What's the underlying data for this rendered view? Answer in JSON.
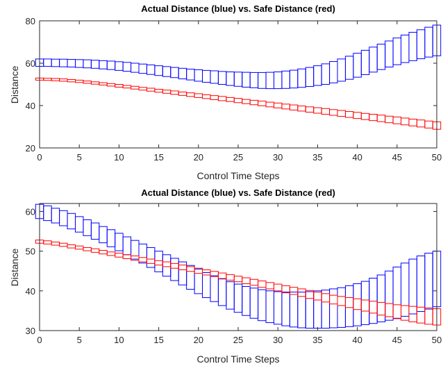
{
  "chart_data": [
    {
      "type": "box",
      "title": "Actual Distance (blue) vs. Safe Distance (red)",
      "xlabel": "Control Time Steps",
      "ylabel": "Distance",
      "xlim": [
        0,
        50
      ],
      "ylim": [
        20,
        80
      ],
      "xticks": [
        0,
        5,
        10,
        15,
        20,
        25,
        30,
        35,
        40,
        45,
        50
      ],
      "yticks": [
        20,
        40,
        60,
        80
      ],
      "grid": false,
      "colors": {
        "actual": "#0000ff",
        "safe": "#ff0000"
      },
      "x": [
        0,
        1,
        2,
        3,
        4,
        5,
        6,
        7,
        8,
        9,
        10,
        11,
        12,
        13,
        14,
        15,
        16,
        17,
        18,
        19,
        20,
        21,
        22,
        23,
        24,
        25,
        26,
        27,
        28,
        29,
        30,
        31,
        32,
        33,
        34,
        35,
        36,
        37,
        38,
        39,
        40,
        41,
        42,
        43,
        44,
        45,
        46,
        47,
        48,
        49,
        50
      ],
      "series": [
        {
          "name": "Actual Distance",
          "color": "#0000ff",
          "upper": [
            62.0,
            62.0,
            61.9,
            61.9,
            61.8,
            61.7,
            61.6,
            61.4,
            61.2,
            61.0,
            60.7,
            60.4,
            60.0,
            59.6,
            59.2,
            58.8,
            58.4,
            58.0,
            57.6,
            57.2,
            56.9,
            56.6,
            56.4,
            56.1,
            55.9,
            55.8,
            55.7,
            55.6,
            55.6,
            55.7,
            55.9,
            56.3,
            56.7,
            57.3,
            58.0,
            58.8,
            59.7,
            60.8,
            62.0,
            63.3,
            64.7,
            66.1,
            67.6,
            69.0,
            70.5,
            71.9,
            73.3,
            74.6,
            75.8,
            77.0,
            78.0
          ],
          "lower": [
            58.5,
            58.5,
            58.4,
            58.3,
            58.2,
            58.0,
            57.8,
            57.6,
            57.3,
            57.0,
            56.6,
            56.2,
            55.7,
            55.2,
            54.7,
            54.2,
            53.7,
            53.2,
            52.6,
            52.1,
            51.5,
            51.0,
            50.5,
            50.0,
            49.5,
            49.1,
            48.7,
            48.4,
            48.1,
            48.0,
            48.0,
            48.1,
            48.3,
            48.6,
            49.0,
            49.5,
            50.0,
            50.7,
            51.5,
            52.4,
            53.4,
            54.6,
            55.8,
            57.0,
            58.2,
            59.3,
            60.3,
            61.2,
            62.1,
            62.9,
            63.5
          ]
        },
        {
          "name": "Safe Distance",
          "color": "#ff0000",
          "upper": [
            53.0,
            52.9,
            52.8,
            52.6,
            52.3,
            52.0,
            51.6,
            51.2,
            50.8,
            50.4,
            50.0,
            49.5,
            49.1,
            48.6,
            48.2,
            47.7,
            47.3,
            46.9,
            46.4,
            46.0,
            45.6,
            45.1,
            44.7,
            44.3,
            43.8,
            43.4,
            42.9,
            42.5,
            42.1,
            41.6,
            41.2,
            40.7,
            40.3,
            39.8,
            39.4,
            39.0,
            38.6,
            38.1,
            37.7,
            37.2,
            36.8,
            36.3,
            35.9,
            35.5,
            35.0,
            34.6,
            34.1,
            33.6,
            33.2,
            32.7,
            32.3
          ],
          "lower": [
            52.0,
            51.9,
            51.7,
            51.5,
            51.2,
            50.9,
            50.5,
            50.1,
            49.7,
            49.2,
            48.7,
            48.3,
            47.8,
            47.3,
            46.8,
            46.3,
            45.8,
            45.3,
            44.8,
            44.3,
            43.8,
            43.3,
            42.8,
            42.3,
            41.9,
            41.4,
            40.9,
            40.4,
            39.9,
            39.4,
            38.9,
            38.4,
            37.9,
            37.4,
            36.9,
            36.4,
            35.9,
            35.4,
            34.9,
            34.4,
            33.9,
            33.4,
            32.9,
            32.4,
            31.9,
            31.4,
            30.9,
            30.4,
            29.9,
            29.4,
            28.8
          ]
        }
      ]
    },
    {
      "type": "box",
      "title": "Actual Distance (blue) vs. Safe Distance (red)",
      "xlabel": "Control Time Steps",
      "ylabel": "Distance",
      "xlim": [
        0,
        50
      ],
      "ylim": [
        30,
        62
      ],
      "xticks": [
        0,
        5,
        10,
        15,
        20,
        25,
        30,
        35,
        40,
        45,
        50
      ],
      "yticks": [
        30,
        40,
        50,
        60
      ],
      "grid": false,
      "colors": {
        "actual": "#0000ff",
        "safe": "#ff0000"
      },
      "x": [
        0,
        1,
        2,
        3,
        4,
        5,
        6,
        7,
        8,
        9,
        10,
        11,
        12,
        13,
        14,
        15,
        16,
        17,
        18,
        19,
        20,
        21,
        22,
        23,
        24,
        25,
        26,
        27,
        28,
        29,
        30,
        31,
        32,
        33,
        34,
        35,
        36,
        37,
        38,
        39,
        40,
        41,
        42,
        43,
        44,
        45,
        46,
        47,
        48,
        49,
        50
      ],
      "series": [
        {
          "name": "Actual Distance",
          "color": "#0000ff",
          "upper": [
            61.8,
            61.4,
            60.8,
            60.2,
            59.5,
            58.7,
            57.9,
            57.1,
            56.2,
            55.4,
            54.5,
            53.6,
            52.7,
            51.8,
            50.9,
            50.0,
            49.1,
            48.2,
            47.3,
            46.4,
            45.5,
            44.6,
            43.8,
            43.0,
            42.3,
            41.7,
            41.1,
            40.7,
            40.3,
            40.0,
            39.8,
            39.7,
            39.7,
            39.7,
            39.8,
            40.0,
            40.2,
            40.5,
            40.8,
            41.3,
            41.8,
            42.4,
            43.2,
            44.0,
            45.0,
            46.0,
            47.0,
            48.0,
            48.8,
            49.5,
            50.0
          ],
          "lower": [
            58.2,
            57.7,
            57.1,
            56.4,
            55.6,
            54.8,
            53.9,
            53.0,
            52.1,
            51.1,
            50.1,
            49.1,
            48.0,
            47.0,
            45.9,
            44.8,
            43.7,
            42.6,
            41.5,
            40.4,
            39.3,
            38.3,
            37.3,
            36.3,
            35.4,
            34.6,
            33.8,
            33.1,
            32.5,
            32.0,
            31.6,
            31.2,
            30.9,
            30.7,
            30.6,
            30.6,
            30.6,
            30.7,
            30.8,
            31.0,
            31.2,
            31.5,
            31.8,
            32.2,
            32.6,
            33.1,
            33.6,
            34.2,
            34.8,
            35.4,
            36.0
          ]
        },
        {
          "name": "Safe Distance",
          "color": "#ff0000",
          "upper": [
            52.8,
            52.6,
            52.3,
            52.0,
            51.6,
            51.3,
            50.9,
            50.6,
            50.2,
            49.8,
            49.5,
            49.1,
            48.8,
            48.4,
            48.0,
            47.6,
            47.3,
            46.9,
            46.5,
            46.1,
            45.7,
            45.3,
            44.9,
            44.5,
            44.1,
            43.7,
            43.3,
            42.9,
            42.5,
            42.1,
            41.7,
            41.3,
            40.9,
            40.5,
            40.1,
            39.7,
            39.3,
            38.9,
            38.6,
            38.3,
            38.0,
            37.7,
            37.4,
            37.1,
            36.8,
            36.5,
            36.3,
            36.1,
            35.9,
            35.7,
            35.5
          ],
          "lower": [
            52.0,
            51.8,
            51.5,
            51.2,
            50.8,
            50.5,
            50.1,
            49.7,
            49.3,
            48.9,
            48.5,
            48.1,
            47.7,
            47.3,
            46.9,
            46.5,
            46.1,
            45.7,
            45.3,
            44.9,
            44.4,
            44.0,
            43.6,
            43.1,
            42.7,
            42.3,
            41.8,
            41.4,
            40.9,
            40.5,
            40.0,
            39.5,
            39.1,
            38.6,
            38.1,
            37.7,
            37.2,
            36.7,
            36.3,
            35.8,
            35.3,
            34.9,
            34.4,
            33.9,
            33.5,
            33.0,
            32.6,
            32.2,
            31.9,
            31.6,
            31.4
          ]
        }
      ]
    }
  ]
}
